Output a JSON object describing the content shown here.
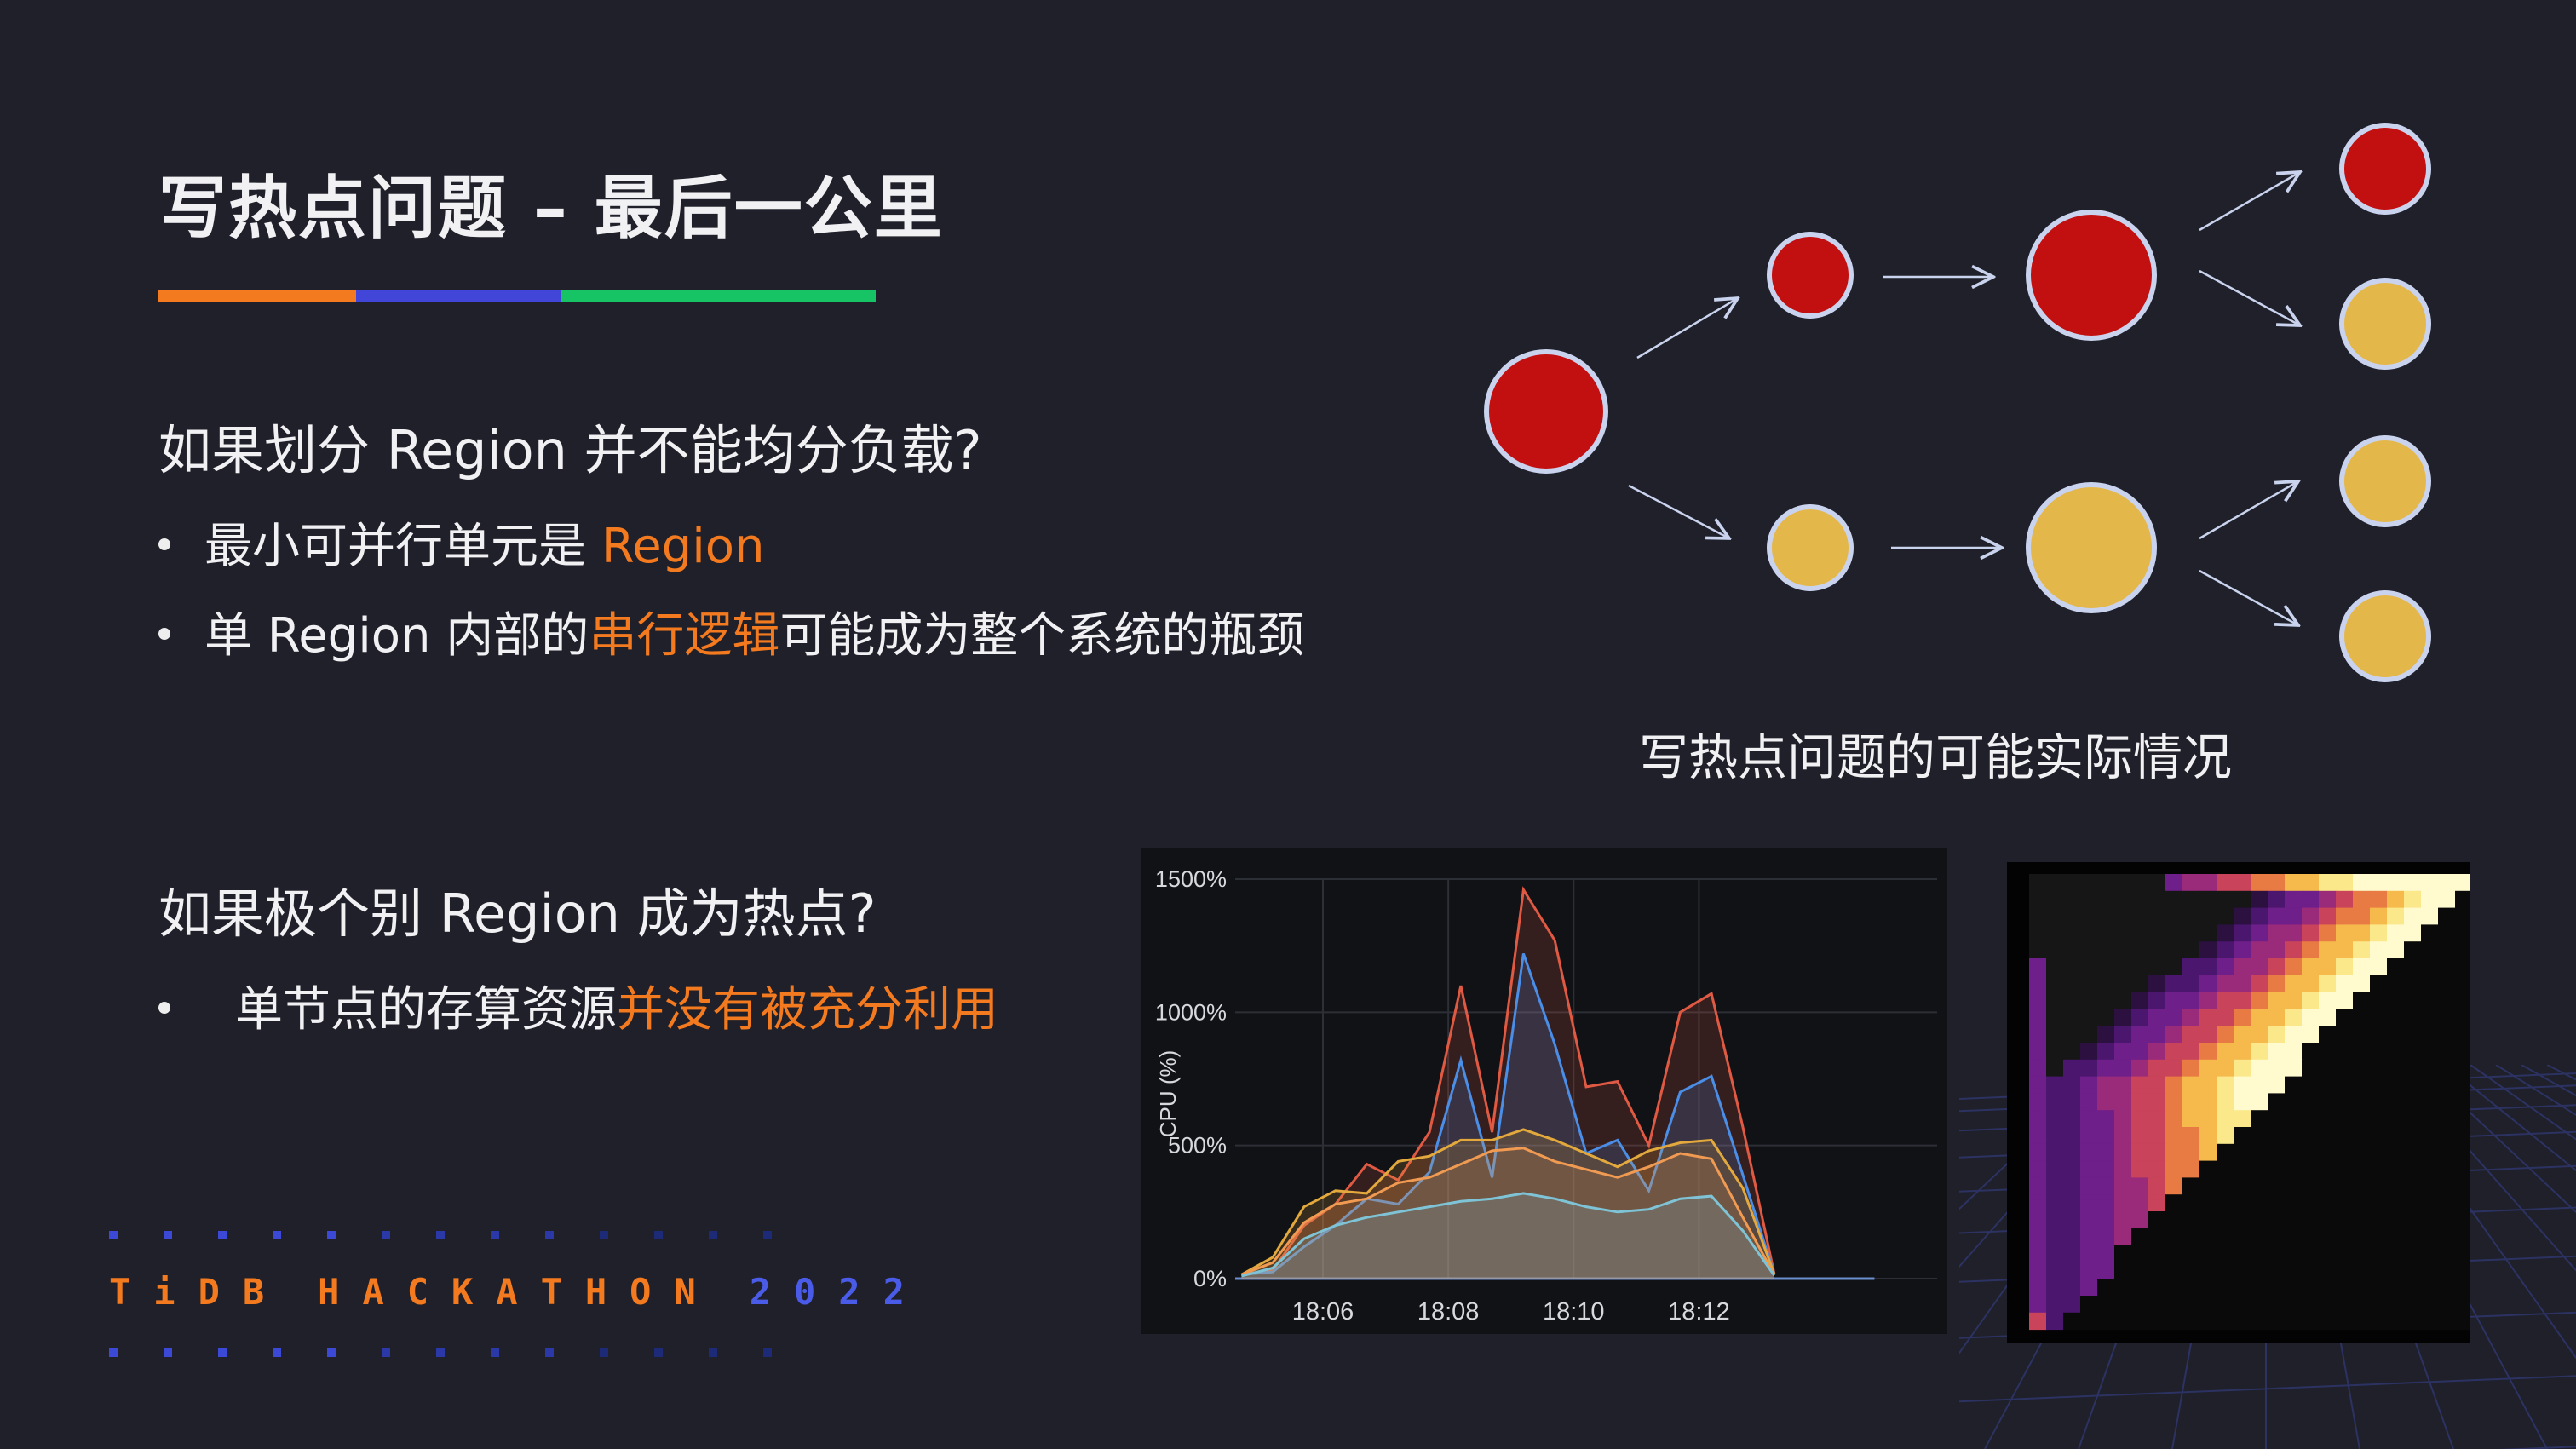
{
  "title": "写热点问题 – 最后一公里",
  "accent_colors": [
    "#f47a1f",
    "#4246d8",
    "#16c466"
  ],
  "section1": {
    "question": "如果划分 Region 并不能均分负载?",
    "bullets": [
      {
        "parts": [
          {
            "text": "最小可并行单元是 ",
            "highlight": false
          },
          {
            "text": "Region",
            "highlight": true
          }
        ]
      },
      {
        "parts": [
          {
            "text": "单 Region 内部的",
            "highlight": false
          },
          {
            "text": "串行逻辑",
            "highlight": true
          },
          {
            "text": "可能成为整个系统的瓶颈",
            "highlight": false
          }
        ]
      }
    ]
  },
  "section2": {
    "question": "如果极个别 Region 成为热点?",
    "bullets": [
      {
        "parts": [
          {
            "text": "单节点的存算资源",
            "highlight": false
          },
          {
            "text": "并没有被充分利用",
            "highlight": true
          }
        ]
      }
    ]
  },
  "diagram": {
    "caption": "写热点问题的可能实际情况",
    "hot_color": "#c20f0f",
    "cold_color": "#e4b74a",
    "node_states": [
      "hot",
      "hot",
      "cold",
      "hot",
      "cold",
      "hot",
      "cold",
      "cold",
      "cold"
    ]
  },
  "logo": {
    "tidb": "TiDB",
    "hackathon": "HACKATHON",
    "year": "2022"
  },
  "chart_data": {
    "type": "area",
    "title": "",
    "ylabel": "CPU (%)",
    "ylim": [
      0,
      1500
    ],
    "yticks": [
      "0%",
      "500%",
      "1000%",
      "1500%"
    ],
    "xticks": [
      "18:06",
      "18:08",
      "18:10",
      "18:12"
    ],
    "x_minutes": [
      0,
      0.5,
      1,
      1.5,
      2,
      2.5,
      3,
      3.5,
      4,
      4.5,
      5,
      5.5,
      6,
      6.5,
      7,
      7.5,
      8,
      8.5
    ],
    "x_range": [
      -1.4,
      9.8
    ],
    "series": [
      {
        "color": "#e05a43",
        "values": [
          15,
          30,
          200,
          280,
          430,
          370,
          550,
          1100,
          550,
          1460,
          1270,
          720,
          740,
          500,
          1000,
          1070,
          570,
          20
        ]
      },
      {
        "color": "#4a8ee8",
        "values": [
          15,
          25,
          120,
          200,
          300,
          280,
          400,
          820,
          380,
          1220,
          880,
          470,
          520,
          330,
          700,
          760,
          390,
          18
        ]
      },
      {
        "color": "#e3a93c",
        "values": [
          15,
          80,
          270,
          330,
          320,
          440,
          460,
          520,
          520,
          560,
          520,
          470,
          420,
          480,
          510,
          520,
          340,
          18
        ]
      },
      {
        "color": "#f09a52",
        "values": [
          15,
          60,
          210,
          280,
          300,
          360,
          380,
          430,
          480,
          490,
          440,
          410,
          380,
          420,
          470,
          450,
          230,
          15
        ]
      },
      {
        "color": "#7ec4d6",
        "values": [
          10,
          40,
          150,
          200,
          230,
          250,
          270,
          290,
          300,
          320,
          300,
          270,
          250,
          260,
          300,
          310,
          180,
          12
        ]
      }
    ]
  }
}
